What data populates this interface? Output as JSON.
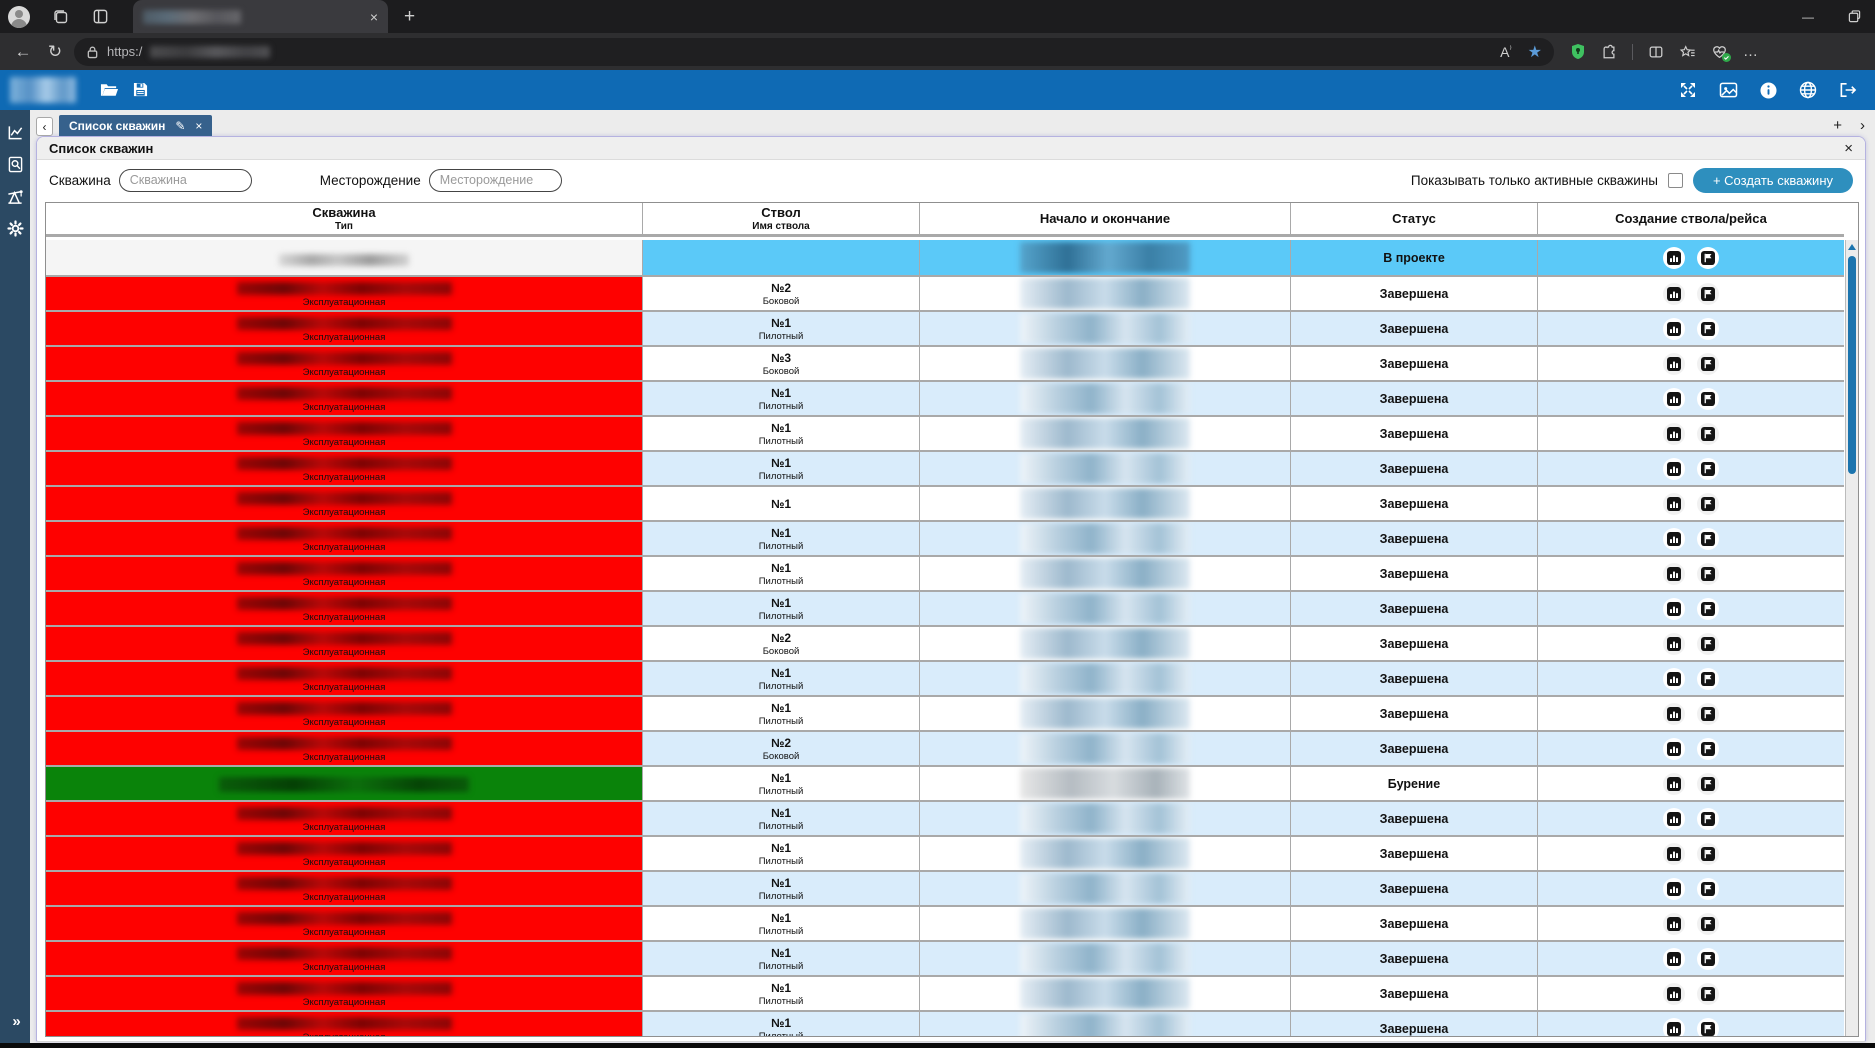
{
  "browser": {
    "url_scheme": "https:/",
    "new_tab_glyph": "+",
    "tab_close_glyph": "×",
    "minimize_glyph": "—"
  },
  "nav_tabs": {
    "back_glyph": "‹",
    "active_tab_label": "Список скважин",
    "edit_glyph": "✎",
    "close_glyph": "×",
    "add_glyph": "+",
    "forward_glyph": "›"
  },
  "panel": {
    "title": "Список скважин",
    "close_glyph": "×",
    "filters": {
      "well_label": "Скважина",
      "well_placeholder": "Скважина",
      "field_label": "Месторождение",
      "field_placeholder": "Месторождение",
      "active_only_label": "Показывать только активные скважины",
      "create_button_label": "+ Создать скважину"
    }
  },
  "sidebar_expand_glyph": "»",
  "colors": {
    "app_accent": "#0f6ab4",
    "selected_row": "#5bc9f8",
    "row_alt": "#d9ecfb",
    "redacted_red": "#fe0100",
    "active_green": "#0a830a",
    "create_button": "#2e8fbe"
  },
  "table": {
    "columns": [
      {
        "title": "Скважина",
        "subtitle": "Тип"
      },
      {
        "title": "Ствол",
        "subtitle": "Имя ствола"
      },
      {
        "title": "Начало и окончание",
        "subtitle": ""
      },
      {
        "title": "Статус",
        "subtitle": ""
      },
      {
        "title": "Создание ствола/рейса",
        "subtitle": ""
      }
    ],
    "statuses": {
      "project": "В проекте",
      "completed": "Завершена",
      "drilling": "Бурение"
    },
    "rows": [
      {
        "kind": "selected",
        "shade": "white",
        "type_label": "",
        "wellbore": "",
        "wellbore_sub": "",
        "status": "В проекте"
      },
      {
        "kind": "red",
        "shade": "white",
        "type_label": "Эксплуатационная",
        "wellbore": "№2",
        "wellbore_sub": "Боковой",
        "status": "Завершена"
      },
      {
        "kind": "red",
        "shade": "blue",
        "type_label": "Эксплуатационная",
        "wellbore": "№1",
        "wellbore_sub": "Пилотный",
        "status": "Завершена"
      },
      {
        "kind": "red",
        "shade": "white",
        "type_label": "Эксплуатационная",
        "wellbore": "№3",
        "wellbore_sub": "Боковой",
        "status": "Завершена"
      },
      {
        "kind": "red",
        "shade": "blue",
        "type_label": "Эксплуатационная",
        "wellbore": "№1",
        "wellbore_sub": "Пилотный",
        "status": "Завершена"
      },
      {
        "kind": "red",
        "shade": "white",
        "type_label": "Эксплуатационная",
        "wellbore": "№1",
        "wellbore_sub": "Пилотный",
        "status": "Завершена"
      },
      {
        "kind": "red",
        "shade": "blue",
        "type_label": "Эксплуатационная",
        "wellbore": "№1",
        "wellbore_sub": "Пилотный",
        "status": "Завершена"
      },
      {
        "kind": "red",
        "shade": "white",
        "type_label": "Эксплуатационная",
        "wellbore": "№1",
        "wellbore_sub": "",
        "status": "Завершена"
      },
      {
        "kind": "red",
        "shade": "blue",
        "type_label": "Эксплуатационная",
        "wellbore": "№1",
        "wellbore_sub": "Пилотный",
        "status": "Завершена"
      },
      {
        "kind": "red",
        "shade": "white",
        "type_label": "Эксплуатационная",
        "wellbore": "№1",
        "wellbore_sub": "Пилотный",
        "status": "Завершена"
      },
      {
        "kind": "red",
        "shade": "blue",
        "type_label": "Эксплуатационная",
        "wellbore": "№1",
        "wellbore_sub": "Пилотный",
        "status": "Завершена"
      },
      {
        "kind": "red",
        "shade": "white",
        "type_label": "Эксплуатационная",
        "wellbore": "№2",
        "wellbore_sub": "Боковой",
        "status": "Завершена"
      },
      {
        "kind": "red",
        "shade": "blue",
        "type_label": "Эксплуатационная",
        "wellbore": "№1",
        "wellbore_sub": "Пилотный",
        "status": "Завершена"
      },
      {
        "kind": "red",
        "shade": "white",
        "type_label": "Эксплуатационная",
        "wellbore": "№1",
        "wellbore_sub": "Пилотный",
        "status": "Завершена"
      },
      {
        "kind": "red",
        "shade": "blue",
        "type_label": "Эксплуатационная",
        "wellbore": "№2",
        "wellbore_sub": "Боковой",
        "status": "Завершена"
      },
      {
        "kind": "green",
        "shade": "white",
        "type_label": "",
        "wellbore": "№1",
        "wellbore_sub": "Пилотный",
        "status": "Бурение"
      },
      {
        "kind": "red",
        "shade": "blue",
        "type_label": "Эксплуатационная",
        "wellbore": "№1",
        "wellbore_sub": "Пилотный",
        "status": "Завершена"
      },
      {
        "kind": "red",
        "shade": "white",
        "type_label": "Эксплуатационная",
        "wellbore": "№1",
        "wellbore_sub": "Пилотный",
        "status": "Завершена"
      },
      {
        "kind": "red",
        "shade": "blue",
        "type_label": "Эксплуатационная",
        "wellbore": "№1",
        "wellbore_sub": "Пилотный",
        "status": "Завершена"
      },
      {
        "kind": "red",
        "shade": "white",
        "type_label": "Эксплуатационная",
        "wellbore": "№1",
        "wellbore_sub": "Пилотный",
        "status": "Завершена"
      },
      {
        "kind": "red",
        "shade": "blue",
        "type_label": "Эксплуатационная",
        "wellbore": "№1",
        "wellbore_sub": "Пилотный",
        "status": "Завершена"
      },
      {
        "kind": "red",
        "shade": "white",
        "type_label": "Эксплуатационная",
        "wellbore": "№1",
        "wellbore_sub": "Пилотный",
        "status": "Завершена"
      },
      {
        "kind": "red",
        "shade": "blue",
        "type_label": "Эксплуатационная",
        "wellbore": "№1",
        "wellbore_sub": "Пилотный",
        "status": "Завершена"
      }
    ]
  }
}
